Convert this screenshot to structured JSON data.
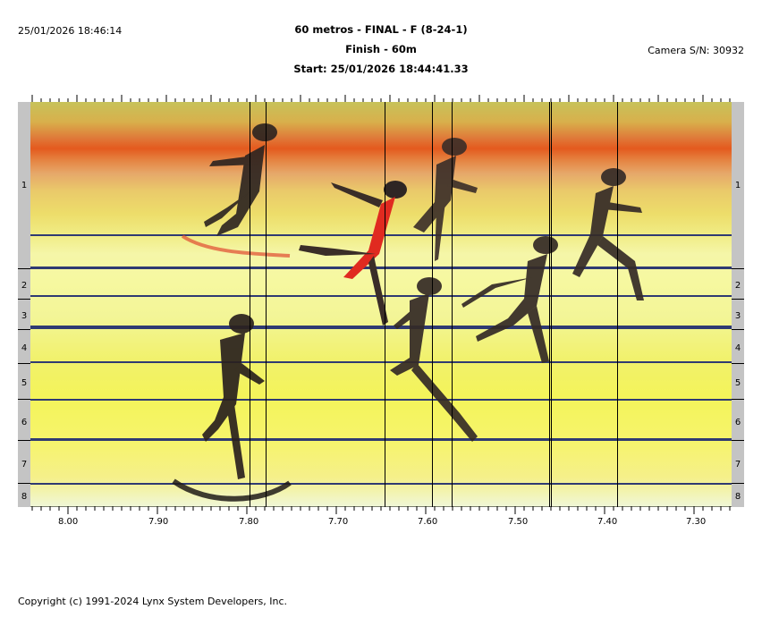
{
  "header": {
    "datetime": "25/01/2026 18:46:14",
    "title": "60 metros - FINAL - F (8-24-1)",
    "finish": "Finish - 60m",
    "start": "Start: 25/01/2026 18:44:41.33",
    "camera": "Camera S/N: 30932"
  },
  "lanes": [
    "1",
    "2",
    "3",
    "4",
    "5",
    "6",
    "7",
    "8"
  ],
  "time_axis": {
    "labels": [
      "8.00",
      "7.90",
      "7.80",
      "7.70",
      "7.60",
      "7.50",
      "7.40",
      "7.30"
    ]
  },
  "colors": {
    "lane_line": "#2f3a72",
    "side_strip": "#c4c4c4",
    "hot_band": "#e45a1e",
    "yellow_field": "#f4f45a"
  },
  "footer": {
    "copyright": "Copyright (c) 1991-2024 Lynx System Developers, Inc."
  }
}
